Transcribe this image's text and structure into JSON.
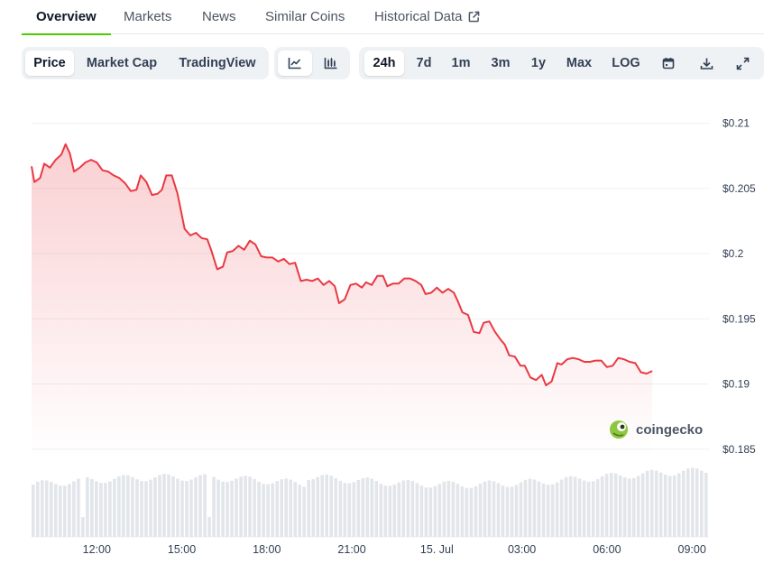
{
  "tabs": [
    {
      "label": "Overview",
      "active": true
    },
    {
      "label": "Markets"
    },
    {
      "label": "News"
    },
    {
      "label": "Similar Coins"
    },
    {
      "label": "Historical Data",
      "external": true
    }
  ],
  "toolbar": {
    "chart_types": [
      "Price",
      "Market Cap",
      "TradingView"
    ],
    "selected_type": "Price",
    "chart_styles": [
      "line-chart-icon",
      "candlestick-icon"
    ],
    "ranges": [
      "24h",
      "7d",
      "1m",
      "3m",
      "1y",
      "Max",
      "LOG"
    ],
    "selected_range": "24h",
    "tools": [
      "calendar-icon",
      "download-icon",
      "expand-icon"
    ]
  },
  "colors": {
    "line": "#ea3943",
    "accent": "#4bcc00",
    "volume": "#e2e5ea",
    "grid": "#eef0f3"
  },
  "watermark": "coingecko",
  "chart_data": {
    "type": "area",
    "title": "",
    "xlabel": "",
    "ylabel": "",
    "ylim": [
      0.1845,
      0.2115
    ],
    "yticks": [
      0.21,
      0.205,
      0.2,
      0.195,
      0.19,
      0.185
    ],
    "ytick_labels": [
      "$0.21",
      "$0.205",
      "$0.2",
      "$0.195",
      "$0.19",
      "$0.185"
    ],
    "xlim": [
      9.7,
      33.6
    ],
    "xticks": [
      12,
      15,
      18,
      21,
      24,
      27,
      30,
      33
    ],
    "xtick_labels": [
      "12:00",
      "15:00",
      "18:00",
      "21:00",
      "15. Jul",
      "03:00",
      "06:00",
      "09:00"
    ],
    "grid": true,
    "x_unit": "hour",
    "series": [
      {
        "values": [
          [
            9.7,
            0.2067
          ],
          [
            9.8,
            0.2055
          ],
          [
            10.0,
            0.2058
          ],
          [
            10.15,
            0.2069
          ],
          [
            10.35,
            0.2066
          ],
          [
            10.55,
            0.2072
          ],
          [
            10.75,
            0.2076
          ],
          [
            10.9,
            0.2084
          ],
          [
            11.05,
            0.2077
          ],
          [
            11.2,
            0.2063
          ],
          [
            11.4,
            0.2066
          ],
          [
            11.6,
            0.207
          ],
          [
            11.8,
            0.2072
          ],
          [
            12.0,
            0.207
          ],
          [
            12.2,
            0.2064
          ],
          [
            12.4,
            0.2063
          ],
          [
            12.6,
            0.206
          ],
          [
            12.8,
            0.2058
          ],
          [
            13.0,
            0.2054
          ],
          [
            13.2,
            0.2048
          ],
          [
            13.4,
            0.2049
          ],
          [
            13.55,
            0.206
          ],
          [
            13.75,
            0.2055
          ],
          [
            13.95,
            0.2045
          ],
          [
            14.15,
            0.2046
          ],
          [
            14.3,
            0.2049
          ],
          [
            14.45,
            0.206
          ],
          [
            14.65,
            0.206
          ],
          [
            14.85,
            0.2046
          ],
          [
            15.0,
            0.203
          ],
          [
            15.1,
            0.2019
          ],
          [
            15.3,
            0.2014
          ],
          [
            15.5,
            0.2016
          ],
          [
            15.7,
            0.2012
          ],
          [
            15.9,
            0.2011
          ],
          [
            16.05,
            0.2002
          ],
          [
            16.25,
            0.1988
          ],
          [
            16.45,
            0.199
          ],
          [
            16.6,
            0.2001
          ],
          [
            16.8,
            0.2002
          ],
          [
            17.0,
            0.2006
          ],
          [
            17.2,
            0.2003
          ],
          [
            17.4,
            0.201
          ],
          [
            17.6,
            0.2007
          ],
          [
            17.8,
            0.1998
          ],
          [
            18.0,
            0.1997
          ],
          [
            18.2,
            0.1997
          ],
          [
            18.4,
            0.1994
          ],
          [
            18.6,
            0.1996
          ],
          [
            18.8,
            0.1992
          ],
          [
            19.0,
            0.1993
          ],
          [
            19.2,
            0.1979
          ],
          [
            19.4,
            0.198
          ],
          [
            19.6,
            0.1979
          ],
          [
            19.8,
            0.1981
          ],
          [
            20.0,
            0.1976
          ],
          [
            20.2,
            0.1979
          ],
          [
            20.4,
            0.1975
          ],
          [
            20.55,
            0.1962
          ],
          [
            20.75,
            0.1965
          ],
          [
            20.95,
            0.1976
          ],
          [
            21.15,
            0.1977
          ],
          [
            21.35,
            0.1974
          ],
          [
            21.5,
            0.1978
          ],
          [
            21.7,
            0.1976
          ],
          [
            21.9,
            0.1983
          ],
          [
            22.1,
            0.1983
          ],
          [
            22.25,
            0.1975
          ],
          [
            22.45,
            0.1977
          ],
          [
            22.65,
            0.1977
          ],
          [
            22.85,
            0.1981
          ],
          [
            23.05,
            0.1981
          ],
          [
            23.25,
            0.1979
          ],
          [
            23.45,
            0.1976
          ],
          [
            23.6,
            0.1969
          ],
          [
            23.8,
            0.197
          ],
          [
            24.0,
            0.1974
          ],
          [
            24.2,
            0.197
          ],
          [
            24.4,
            0.1973
          ],
          [
            24.6,
            0.197
          ],
          [
            24.75,
            0.1963
          ],
          [
            24.9,
            0.1955
          ],
          [
            25.1,
            0.1953
          ],
          [
            25.3,
            0.194
          ],
          [
            25.5,
            0.1939
          ],
          [
            25.65,
            0.1947
          ],
          [
            25.85,
            0.1948
          ],
          [
            26.05,
            0.194
          ],
          [
            26.25,
            0.1934
          ],
          [
            26.4,
            0.193
          ],
          [
            26.55,
            0.1922
          ],
          [
            26.75,
            0.1921
          ],
          [
            26.95,
            0.1914
          ],
          [
            27.1,
            0.1914
          ],
          [
            27.3,
            0.1905
          ],
          [
            27.5,
            0.1903
          ],
          [
            27.7,
            0.1907
          ],
          [
            27.85,
            0.1899
          ],
          [
            28.05,
            0.1902
          ],
          [
            28.25,
            0.1916
          ],
          [
            28.4,
            0.1915
          ],
          [
            28.6,
            0.1919
          ],
          [
            28.8,
            0.192
          ],
          [
            29.0,
            0.1919
          ],
          [
            29.2,
            0.1917
          ],
          [
            29.4,
            0.1917
          ],
          [
            29.6,
            0.1918
          ],
          [
            29.8,
            0.1918
          ],
          [
            30.0,
            0.1913
          ],
          [
            30.2,
            0.1914
          ],
          [
            30.4,
            0.192
          ],
          [
            30.6,
            0.1919
          ],
          [
            30.8,
            0.1917
          ],
          [
            31.0,
            0.1916
          ],
          [
            31.2,
            0.1909
          ],
          [
            31.4,
            0.1908
          ],
          [
            31.6,
            0.191
          ]
        ]
      }
    ]
  }
}
